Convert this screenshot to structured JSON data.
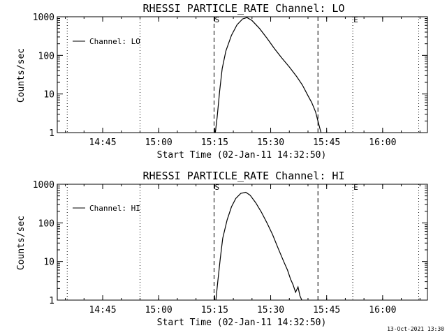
{
  "footer_timestamp": "13-Oct-2021 13:30",
  "chart_data": [
    {
      "type": "line",
      "title": "RHESSI PARTICLE_RATE Channel: LO",
      "xlabel": "Start Time (02-Jan-11 14:32:50)",
      "ylabel": "Counts/sec",
      "yscale": "log",
      "ylim": [
        1,
        1000
      ],
      "xlim": [
        "14:32:50",
        "16:12:00"
      ],
      "x_ticks": [
        "14:45",
        "15:00",
        "15:15",
        "15:30",
        "15:45",
        "16:00"
      ],
      "y_ticks": [
        "1",
        "10",
        "100",
        "1000"
      ],
      "legend": {
        "position": "top-left",
        "entries": [
          "Channel: LO"
        ]
      },
      "markers": [
        {
          "label": "",
          "x": "14:35:30",
          "style": "dotted"
        },
        {
          "label": "",
          "x": "14:55:00",
          "style": "dotted"
        },
        {
          "label": "S",
          "x": "15:14:50",
          "style": "dashed"
        },
        {
          "label": "",
          "x": "15:42:40",
          "style": "dashed"
        },
        {
          "label": "E",
          "x": "15:52:00",
          "style": "dotted"
        },
        {
          "label": "",
          "x": "16:09:40",
          "style": "dotted"
        }
      ],
      "series": [
        {
          "name": "Channel: LO",
          "x": [
            "15:15:10",
            "15:15:40",
            "15:16:20",
            "15:17:00",
            "15:18:00",
            "15:19:30",
            "15:21:00",
            "15:22:30",
            "15:23:40",
            "15:25:00",
            "15:27:00",
            "15:29:00",
            "15:31:00",
            "15:33:00",
            "15:35:00",
            "15:37:00",
            "15:38:30",
            "15:40:00",
            "15:41:00",
            "15:42:00",
            "15:42:40",
            "15:43:10",
            "15:43:30"
          ],
          "y": [
            1,
            2.5,
            12,
            45,
            130,
            330,
            620,
            880,
            950,
            800,
            500,
            280,
            150,
            85,
            50,
            28,
            17,
            9,
            6,
            3.5,
            2,
            1.3,
            1
          ]
        }
      ]
    },
    {
      "type": "line",
      "title": "RHESSI PARTICLE_RATE Channel: HI",
      "xlabel": "Start Time (02-Jan-11 14:32:50)",
      "ylabel": "Counts/sec",
      "yscale": "log",
      "ylim": [
        1,
        1000
      ],
      "xlim": [
        "14:32:50",
        "16:12:00"
      ],
      "x_ticks": [
        "14:45",
        "15:00",
        "15:15",
        "15:30",
        "15:45",
        "16:00"
      ],
      "y_ticks": [
        "1",
        "10",
        "100",
        "1000"
      ],
      "legend": {
        "position": "top-left",
        "entries": [
          "Channel: HI"
        ]
      },
      "markers": [
        {
          "label": "",
          "x": "14:35:30",
          "style": "dotted"
        },
        {
          "label": "",
          "x": "14:55:00",
          "style": "dotted"
        },
        {
          "label": "S",
          "x": "15:14:50",
          "style": "dashed"
        },
        {
          "label": "",
          "x": "15:42:40",
          "style": "dashed"
        },
        {
          "label": "E",
          "x": "15:52:00",
          "style": "dotted"
        },
        {
          "label": "",
          "x": "16:09:40",
          "style": "dotted"
        }
      ],
      "series": [
        {
          "name": "Channel: HI",
          "x": [
            "15:15:20",
            "15:15:50",
            "15:16:30",
            "15:17:10",
            "15:18:20",
            "15:19:30",
            "15:20:40",
            "15:22:00",
            "15:23:20",
            "15:24:30",
            "15:26:00",
            "15:27:30",
            "15:29:00",
            "15:30:30",
            "15:32:00",
            "15:33:30",
            "15:34:30",
            "15:35:20",
            "15:36:00",
            "15:36:40",
            "15:37:20",
            "15:37:50",
            "15:38:20"
          ],
          "y": [
            1,
            3,
            12,
            40,
            120,
            260,
            430,
            580,
            620,
            520,
            330,
            190,
            100,
            50,
            22,
            10,
            6,
            3.5,
            2.5,
            1.6,
            2.2,
            1.3,
            1
          ]
        }
      ]
    }
  ]
}
